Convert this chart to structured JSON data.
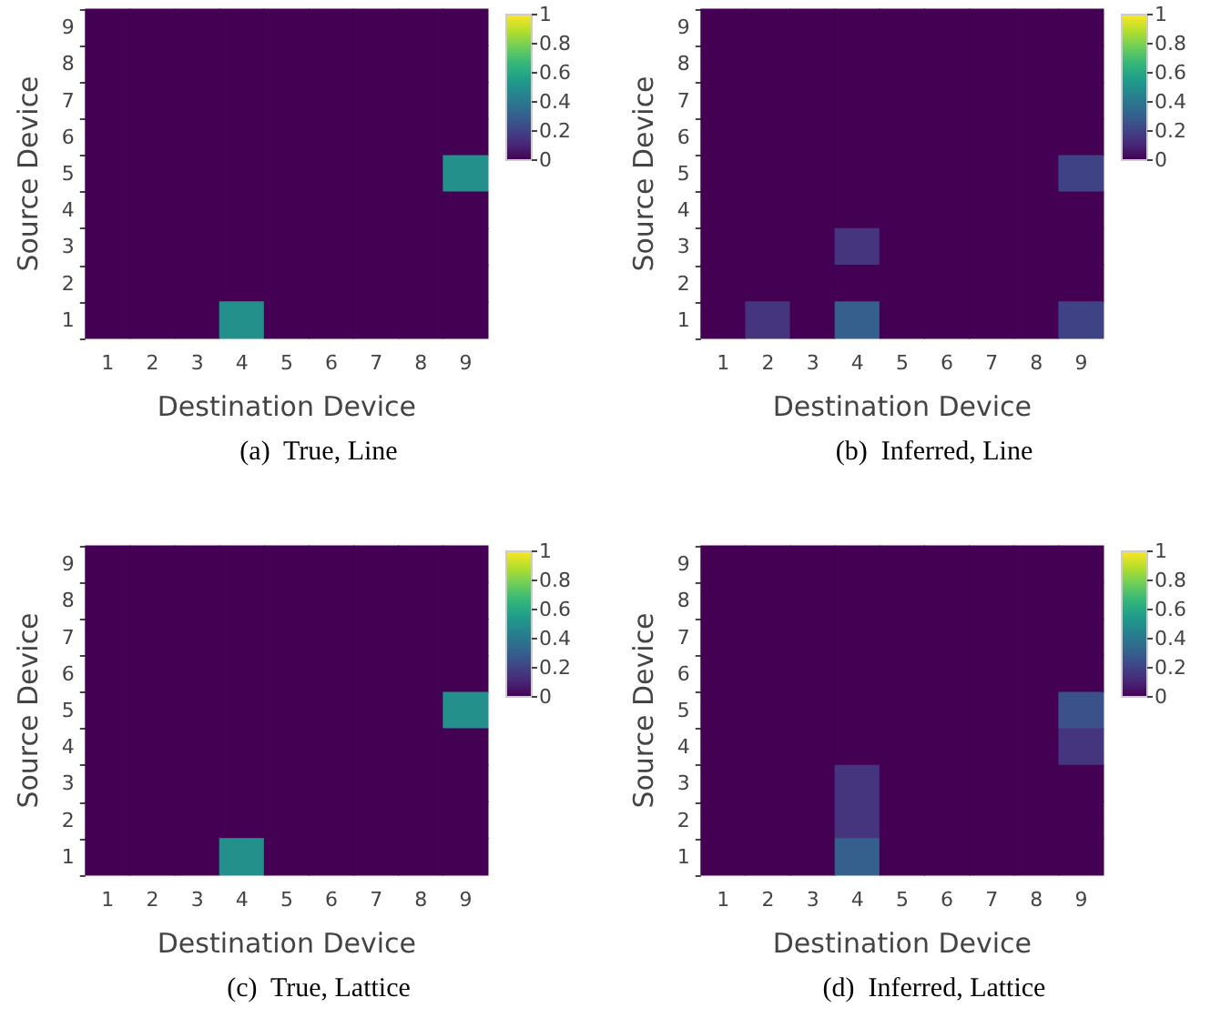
{
  "chart_data": [
    {
      "type": "heatmap",
      "title": "(a)  True, Line",
      "xlabel": "Destination Device",
      "ylabel": "Source Device",
      "categories": [
        "1",
        "2",
        "3",
        "4",
        "5",
        "6",
        "7",
        "8",
        "9"
      ],
      "y_categories": [
        "9",
        "8",
        "7",
        "6",
        "5",
        "4",
        "3",
        "2",
        "1"
      ],
      "clim": [
        0,
        1
      ],
      "cticks": [
        0,
        0.2,
        0.4,
        0.6,
        0.8,
        1
      ],
      "cells": [
        [
          0,
          0,
          0,
          0,
          0,
          0,
          0,
          0,
          0
        ],
        [
          0,
          0,
          0,
          0,
          0,
          0,
          0,
          0,
          0
        ],
        [
          0,
          0,
          0,
          0,
          0,
          0,
          0,
          0,
          0
        ],
        [
          0,
          0,
          0,
          0,
          0,
          0,
          0,
          0,
          0
        ],
        [
          0,
          0,
          0,
          0,
          0,
          0,
          0,
          0,
          0.5
        ],
        [
          0,
          0,
          0,
          0,
          0,
          0,
          0,
          0,
          0
        ],
        [
          0,
          0,
          0,
          0,
          0,
          0,
          0,
          0,
          0
        ],
        [
          0,
          0,
          0,
          0,
          0,
          0,
          0,
          0,
          0
        ],
        [
          0,
          0,
          0,
          0.5,
          0,
          0,
          0,
          0,
          0
        ]
      ]
    },
    {
      "type": "heatmap",
      "title": "(b)  Inferred, Line",
      "xlabel": "Destination Device",
      "ylabel": "Source Device",
      "categories": [
        "1",
        "2",
        "3",
        "4",
        "5",
        "6",
        "7",
        "8",
        "9"
      ],
      "y_categories": [
        "9",
        "8",
        "7",
        "6",
        "5",
        "4",
        "3",
        "2",
        "1"
      ],
      "clim": [
        0,
        1
      ],
      "cticks": [
        0,
        0.2,
        0.4,
        0.6,
        0.8,
        1
      ],
      "cells": [
        [
          0,
          0,
          0,
          0,
          0,
          0,
          0,
          0,
          0
        ],
        [
          0,
          0,
          0,
          0,
          0,
          0,
          0,
          0,
          0
        ],
        [
          0,
          0,
          0,
          0,
          0,
          0,
          0,
          0,
          0
        ],
        [
          0,
          0,
          0,
          0,
          0,
          0,
          0,
          0,
          0
        ],
        [
          0,
          0,
          0,
          0,
          0,
          0,
          0,
          0,
          0.2
        ],
        [
          0,
          0,
          0,
          0,
          0,
          0,
          0,
          0,
          0
        ],
        [
          0,
          0,
          0,
          0.15,
          0,
          0,
          0,
          0,
          0
        ],
        [
          0,
          0,
          0,
          0,
          0,
          0,
          0,
          0,
          0
        ],
        [
          0,
          0.15,
          0,
          0.3,
          0,
          0,
          0,
          0,
          0.2
        ]
      ]
    },
    {
      "type": "heatmap",
      "title": "(c)  True, Lattice",
      "xlabel": "Destination Device",
      "ylabel": "Source Device",
      "categories": [
        "1",
        "2",
        "3",
        "4",
        "5",
        "6",
        "7",
        "8",
        "9"
      ],
      "y_categories": [
        "9",
        "8",
        "7",
        "6",
        "5",
        "4",
        "3",
        "2",
        "1"
      ],
      "clim": [
        0,
        1
      ],
      "cticks": [
        0,
        0.2,
        0.4,
        0.6,
        0.8,
        1
      ],
      "cells": [
        [
          0,
          0,
          0,
          0,
          0,
          0,
          0,
          0,
          0
        ],
        [
          0,
          0,
          0,
          0,
          0,
          0,
          0,
          0,
          0
        ],
        [
          0,
          0,
          0,
          0,
          0,
          0,
          0,
          0,
          0
        ],
        [
          0,
          0,
          0,
          0,
          0,
          0,
          0,
          0,
          0
        ],
        [
          0,
          0,
          0,
          0,
          0,
          0,
          0,
          0,
          0.5
        ],
        [
          0,
          0,
          0,
          0,
          0,
          0,
          0,
          0,
          0
        ],
        [
          0,
          0,
          0,
          0,
          0,
          0,
          0,
          0,
          0
        ],
        [
          0,
          0,
          0,
          0,
          0,
          0,
          0,
          0,
          0
        ],
        [
          0,
          0,
          0,
          0.5,
          0,
          0,
          0,
          0,
          0
        ]
      ]
    },
    {
      "type": "heatmap",
      "title": "(d)  Inferred, Lattice",
      "xlabel": "Destination Device",
      "ylabel": "Source Device",
      "categories": [
        "1",
        "2",
        "3",
        "4",
        "5",
        "6",
        "7",
        "8",
        "9"
      ],
      "y_categories": [
        "9",
        "8",
        "7",
        "6",
        "5",
        "4",
        "3",
        "2",
        "1"
      ],
      "clim": [
        0,
        1
      ],
      "cticks": [
        0,
        0.2,
        0.4,
        0.6,
        0.8,
        1
      ],
      "cells": [
        [
          0,
          0,
          0,
          0,
          0,
          0,
          0,
          0,
          0
        ],
        [
          0,
          0,
          0,
          0,
          0,
          0,
          0,
          0,
          0
        ],
        [
          0,
          0,
          0,
          0,
          0,
          0,
          0,
          0,
          0
        ],
        [
          0,
          0,
          0,
          0,
          0,
          0,
          0,
          0,
          0
        ],
        [
          0,
          0,
          0,
          0,
          0,
          0,
          0,
          0,
          0.25
        ],
        [
          0,
          0,
          0,
          0,
          0,
          0,
          0,
          0,
          0.15
        ],
        [
          0,
          0,
          0,
          0.15,
          0,
          0,
          0,
          0,
          0
        ],
        [
          0,
          0,
          0,
          0.15,
          0,
          0,
          0,
          0,
          0
        ],
        [
          0,
          0,
          0,
          0.3,
          0,
          0,
          0,
          0,
          0
        ]
      ]
    }
  ]
}
